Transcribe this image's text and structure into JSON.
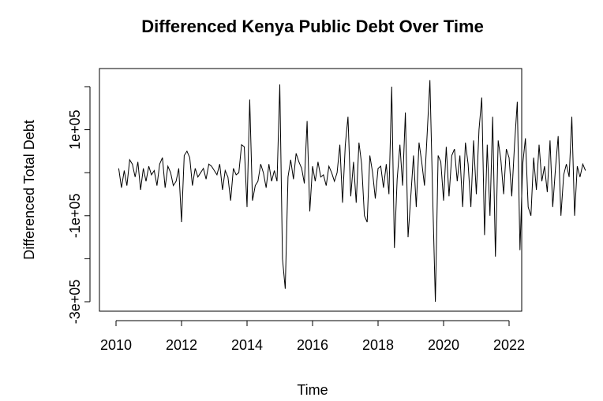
{
  "chart_data": {
    "type": "line",
    "title": "Differenced Kenya Public Debt Over Time",
    "xlabel": "Time",
    "ylabel": "Differenced Total Debt",
    "xlim": [
      2010,
      2022
    ],
    "ylim": [
      -300000,
      200000
    ],
    "x_ticks": [
      {
        "value": 2010,
        "label": "2010"
      },
      {
        "value": 2012,
        "label": "2012"
      },
      {
        "value": 2014,
        "label": "2014"
      },
      {
        "value": 2016,
        "label": "2016"
      },
      {
        "value": 2018,
        "label": "2018"
      },
      {
        "value": 2020,
        "label": "2020"
      },
      {
        "value": 2022,
        "label": "2022"
      }
    ],
    "y_ticks": [
      {
        "value": -300000,
        "label": "-3e+05"
      },
      {
        "value": -100000,
        "label": "-1e+05"
      },
      {
        "value": 100000,
        "label": "1e+05"
      }
    ],
    "y_minor_ticks": [
      -200000,
      0,
      200000
    ],
    "grid": false,
    "line_color": "#000000",
    "series": [
      {
        "start": 2010.083,
        "step": 0.083333,
        "values": [
          10000,
          -35000,
          5000,
          -30000,
          30000,
          20000,
          -10000,
          25000,
          -40000,
          10000,
          -20000,
          15000,
          -5000,
          5000,
          -30000,
          20000,
          35000,
          -35000,
          15000,
          0,
          -30000,
          -20000,
          10000,
          -115000,
          40000,
          50000,
          35000,
          -30000,
          10000,
          -10000,
          0,
          10000,
          -15000,
          20000,
          15000,
          5000,
          -5000,
          20000,
          -40000,
          5000,
          -10000,
          -65000,
          10000,
          -5000,
          0,
          65000,
          60000,
          -80000,
          170000,
          -65000,
          -30000,
          -20000,
          20000,
          0,
          -35000,
          20000,
          -20000,
          5000,
          -20000,
          205000,
          -200000,
          -270000,
          -10000,
          30000,
          -15000,
          45000,
          25000,
          10000,
          -25000,
          120000,
          -90000,
          15000,
          -20000,
          25000,
          -10000,
          -5000,
          -30000,
          15000,
          0,
          -20000,
          0,
          65000,
          -70000,
          65000,
          130000,
          -55000,
          25000,
          -70000,
          70000,
          20000,
          -100000,
          -115000,
          40000,
          0,
          -60000,
          10000,
          15000,
          -35000,
          20000,
          -50000,
          200000,
          -175000,
          -15000,
          65000,
          -30000,
          140000,
          -150000,
          -55000,
          40000,
          -80000,
          70000,
          25000,
          -30000,
          90000,
          215000,
          -55000,
          -300000,
          40000,
          25000,
          -65000,
          60000,
          -55000,
          40000,
          55000,
          -20000,
          40000,
          -80000,
          70000,
          20000,
          -80000,
          75000,
          -50000,
          100000,
          175000,
          -145000,
          65000,
          -100000,
          130000,
          -195000,
          75000,
          30000,
          -50000,
          55000,
          35000,
          -55000,
          65000,
          165000,
          -180000,
          20000,
          80000,
          -80000,
          -100000,
          35000,
          -40000,
          65000,
          -20000,
          15000,
          -45000,
          75000,
          -80000,
          10000,
          85000,
          -100000,
          -5000,
          20000,
          -10000,
          130000,
          -100000,
          15000,
          -10000,
          20000,
          5000
        ]
      }
    ]
  }
}
